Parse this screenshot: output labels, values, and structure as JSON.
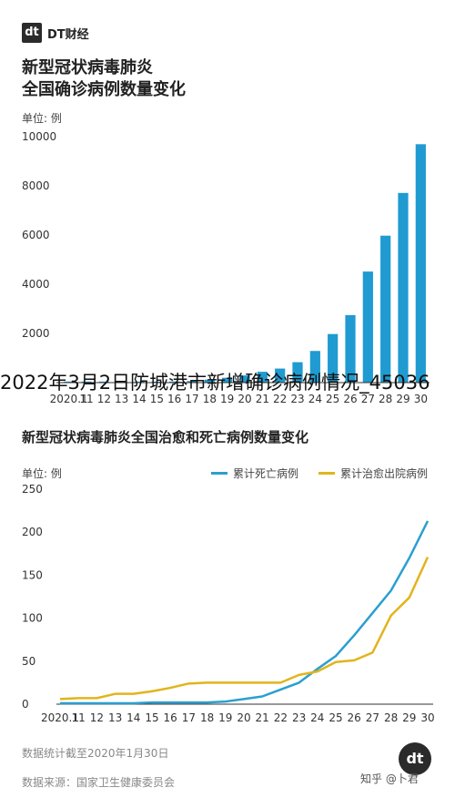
{
  "header": {
    "logo_mark": "dt",
    "logo_text": "DT财经"
  },
  "overlay_title": "2022年3月2日防城港市新增确诊病例情况_45036",
  "zhihu_text": "知乎 @卜君",
  "footer": {
    "note1": "数据统计截至2020年1月30日",
    "note2": "数据来源：国家卫生健康委员会"
  },
  "colors": {
    "bar": "#1f9bd1",
    "death_line": "#2b9fd0",
    "recovered_line": "#e2b41c",
    "axis": "#333333"
  },
  "chart_data": [
    {
      "type": "bar",
      "title": "新型冠状病毒肺炎\n全国确诊病例数量变化",
      "title_lines": [
        "新型冠状病毒肺炎",
        "全国确诊病例数量变化"
      ],
      "unit_label": "单位: 例",
      "ylim": [
        0,
        10000
      ],
      "yticks": [
        2000,
        4000,
        6000,
        8000,
        10000
      ],
      "categories": [
        "2020.1",
        "11",
        "12",
        "13",
        "14",
        "15",
        "16",
        "17",
        "18",
        "19",
        "20",
        "21",
        "22",
        "23",
        "24",
        "25",
        "26",
        "27",
        "28",
        "29",
        "30"
      ],
      "values": [
        41,
        41,
        41,
        41,
        41,
        41,
        45,
        62,
        121,
        198,
        291,
        440,
        571,
        830,
        1287,
        1975,
        2744,
        4515,
        5974,
        7711,
        9692
      ],
      "grid": false
    },
    {
      "type": "line",
      "title": "新型冠状病毒肺炎全国治愈和死亡病例数量变化",
      "unit_label": "单位: 例",
      "ylim": [
        0,
        250
      ],
      "yticks": [
        0,
        50,
        100,
        150,
        200,
        250
      ],
      "x": [
        "2020.1",
        "11",
        "12",
        "13",
        "14",
        "15",
        "16",
        "17",
        "18",
        "19",
        "20",
        "21",
        "22",
        "23",
        "24",
        "25",
        "26",
        "27",
        "28",
        "29",
        "30"
      ],
      "legend_position": "top-right",
      "series": [
        {
          "name": "累计死亡病例",
          "color": "#2b9fd0",
          "values": [
            1,
            1,
            1,
            1,
            1,
            2,
            2,
            2,
            2,
            3,
            6,
            9,
            17,
            25,
            41,
            56,
            80,
            106,
            132,
            170,
            213
          ]
        },
        {
          "name": "累计治愈出院病例",
          "color": "#e2b41c",
          "values": [
            6,
            7,
            7,
            12,
            12,
            15,
            19,
            24,
            25,
            25,
            25,
            25,
            25,
            34,
            38,
            49,
            51,
            60,
            103,
            124,
            171
          ]
        }
      ]
    }
  ]
}
